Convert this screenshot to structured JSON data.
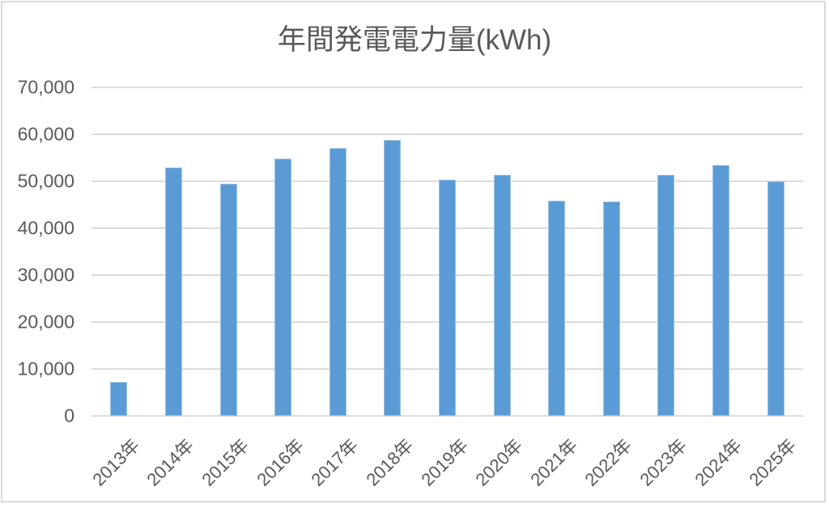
{
  "chart": {
    "colors": {
      "bar_fill": "#5B9BD5",
      "bar_edge": "#9DC3E6",
      "gridline": "#DCDCDC",
      "text": "#595959",
      "frame_border": "#D9D9D9",
      "background": "#FFFFFF"
    }
  },
  "chart_data": {
    "type": "bar",
    "title": "年間発電電力量(kWh)",
    "categories": [
      "2013年",
      "2014年",
      "2015年",
      "2016年",
      "2017年",
      "2018年",
      "2019年",
      "2020年",
      "2021年",
      "2022年",
      "2023年",
      "2024年",
      "2025年"
    ],
    "values": [
      7200,
      52900,
      49400,
      54800,
      57100,
      58800,
      50400,
      51400,
      45800,
      45700,
      51400,
      53400,
      50000
    ],
    "series_name": "",
    "xlabel": "",
    "ylabel": "",
    "ylim": [
      0,
      70000
    ],
    "ytick_interval": 10000,
    "ytick_labels": [
      "0",
      "10,000",
      "20,000",
      "30,000",
      "40,000",
      "50,000",
      "60,000",
      "70,000"
    ],
    "grid": true,
    "legend": false,
    "x_tick_rotation_deg": 45
  }
}
